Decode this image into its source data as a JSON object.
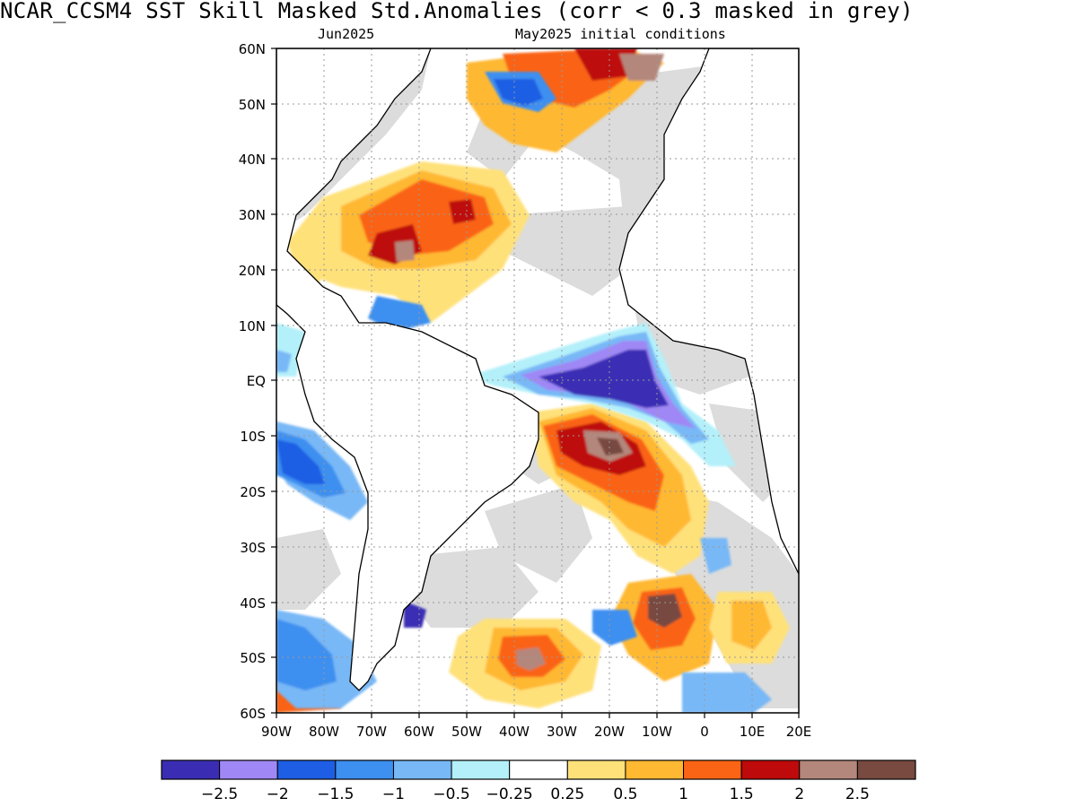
{
  "title": "NCAR_CCSM4  SST Skill Masked Std.Anomalies (corr < 0.3 masked in grey)",
  "subtitle_left": "Jun2025",
  "subtitle_right": "May2025 initial conditions",
  "map": {
    "region": "Atlantic Ocean",
    "lon_range": [
      -90,
      20
    ],
    "lat_range": [
      -60,
      60
    ],
    "lat_labels": [
      "60N",
      "50N",
      "40N",
      "30N",
      "20N",
      "10N",
      "EQ",
      "10S",
      "20S",
      "30S",
      "40S",
      "50S",
      "60S"
    ],
    "lon_labels": [
      "90W",
      "80W",
      "70W",
      "60W",
      "50W",
      "40W",
      "30W",
      "20W",
      "10W",
      "0",
      "10E",
      "20E"
    ],
    "grid": "dotted",
    "mask_color": "#dcdcdc"
  },
  "colorbar": {
    "colors": [
      "#3a2db4",
      "#9f88f5",
      "#1e5ee4",
      "#3d8ff0",
      "#78b8f6",
      "#b4f0fa",
      "#ffffff",
      "#ffe17a",
      "#ffb832",
      "#fa6414",
      "#be0a0a",
      "#b4877c",
      "#784a40"
    ],
    "labels": [
      "-2.5",
      "-2",
      "-1.5",
      "-1",
      "-0.5",
      "-0.25",
      "0.25",
      "0.5",
      "1",
      "1.5",
      "2",
      "2.5"
    ]
  }
}
